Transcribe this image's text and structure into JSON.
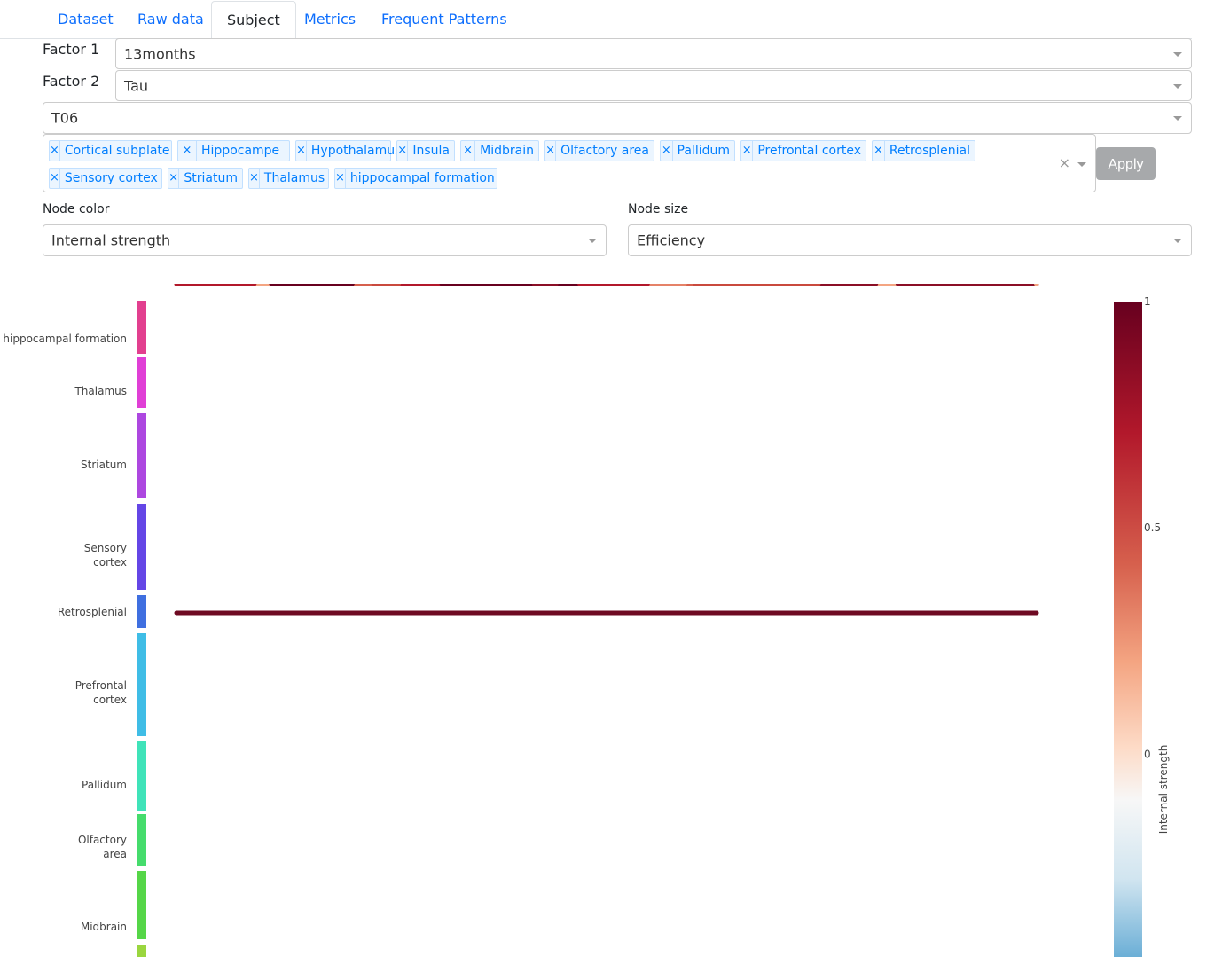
{
  "tabs": [
    {
      "label": "Dataset",
      "active": false
    },
    {
      "label": "Raw data",
      "active": false
    },
    {
      "label": "Subject",
      "active": true
    },
    {
      "label": "Metrics",
      "active": false
    },
    {
      "label": "Frequent Patterns",
      "active": false
    }
  ],
  "filters": {
    "factor1_label": "Factor 1",
    "factor1_value": "13months",
    "factor2_label": "Factor 2",
    "factor2_value": "Tau",
    "subject_value": "T06",
    "regions": [
      "Cortical subplate",
      "Hippocampe",
      "Hypothalamus",
      "Insula",
      "Midbrain",
      "Olfactory area",
      "Pallidum",
      "Prefrontal cortex",
      "Retrosplenial",
      "Sensory cortex",
      "Striatum",
      "Thalamus",
      "hippocampal formation"
    ],
    "remove_glyph": "×",
    "apply_label": "Apply"
  },
  "node_color": {
    "label": "Node color",
    "value": "Internal strength"
  },
  "node_size": {
    "label": "Node size",
    "value": "Efficiency"
  },
  "colors": {
    "accent": "#0d6efd",
    "chip_bg": "#ebf5ff",
    "chip_text": "#007eff",
    "apply_bg": "#a7a9ab"
  },
  "icons": {
    "dropdown": "chevron-down-icon",
    "remove": "close-icon"
  },
  "chart_data": {
    "type": "scatter",
    "rows": [
      {
        "label": "hippocampal formation",
        "color": "#e23f8f"
      },
      {
        "label": "Thalamus",
        "color": "#e03fd6"
      },
      {
        "label": "Striatum",
        "color": "#ad47e0"
      },
      {
        "label": "Sensory cortex",
        "color": "#6446e6"
      },
      {
        "label": "Retrosplenial",
        "color": "#3f6fe0"
      },
      {
        "label": "Prefrontal cortex",
        "color": "#3fbde6"
      },
      {
        "label": "Pallidum",
        "color": "#3fe3b9"
      },
      {
        "label": "Olfactory area",
        "color": "#45dc6c"
      },
      {
        "label": "Midbrain",
        "color": "#55d648"
      },
      {
        "label": "",
        "color": "#9ad63f"
      }
    ],
    "colorbar": {
      "title": "Internal strength",
      "tick_labels": [
        "1",
        "0.5",
        "0"
      ],
      "tick_values": [
        1,
        0.5,
        0
      ],
      "range": [
        -0.45,
        1
      ],
      "colorscale": "RdBu reversed"
    }
  }
}
